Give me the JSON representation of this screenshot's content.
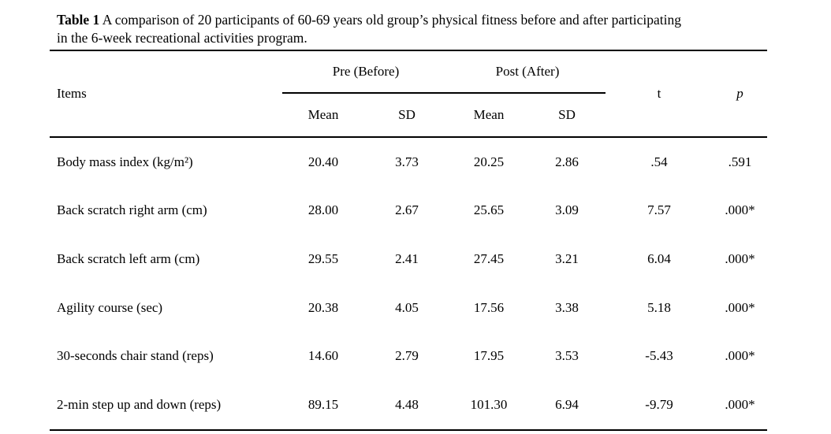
{
  "caption": {
    "bold": "Table 1",
    "line1": " A comparison of 20 participants of 60-69 years old group’s physical fitness before and after participating",
    "line2": "in the 6-week recreational activities program."
  },
  "table": {
    "items_header": "Items",
    "pre_spanner": "Pre (Before)",
    "post_spanner": "Post (After)",
    "sub_mean_pre": "Mean",
    "sub_sd_pre": "SD",
    "sub_mean_post": "Mean",
    "sub_sd_post": "SD",
    "t_header": "t",
    "p_header": "p",
    "rows": [
      {
        "item": "Body mass index (kg/m²)",
        "pre_mean": "20.40",
        "pre_sd": "3.73",
        "post_mean": "20.25",
        "post_sd": "2.86",
        "t": ".54",
        "p": ".591"
      },
      {
        "item": "Back scratch right arm (cm)",
        "pre_mean": "28.00",
        "pre_sd": "2.67",
        "post_mean": "25.65",
        "post_sd": "3.09",
        "t": "7.57",
        "p": ".000*"
      },
      {
        "item": "Back scratch left arm (cm)",
        "pre_mean": "29.55",
        "pre_sd": "2.41",
        "post_mean": "27.45",
        "post_sd": "3.21",
        "t": "6.04",
        "p": ".000*"
      },
      {
        "item": "Agility course (sec)",
        "pre_mean": "20.38",
        "pre_sd": "4.05",
        "post_mean": "17.56",
        "post_sd": "3.38",
        "t": "5.18",
        "p": ".000*"
      },
      {
        "item": "30-seconds chair stand (reps)",
        "pre_mean": "14.60",
        "pre_sd": "2.79",
        "post_mean": "17.95",
        "post_sd": "3.53",
        "t": "-5.43",
        "p": ".000*"
      },
      {
        "item": "2-min step up and down (reps)",
        "pre_mean": "89.15",
        "pre_sd": "4.48",
        "post_mean": "101.30",
        "post_sd": "6.94",
        "t": "-9.79",
        "p": ".000*"
      }
    ]
  },
  "colors": {
    "text": "#000000",
    "background": "#ffffff",
    "rule": "#000000"
  }
}
